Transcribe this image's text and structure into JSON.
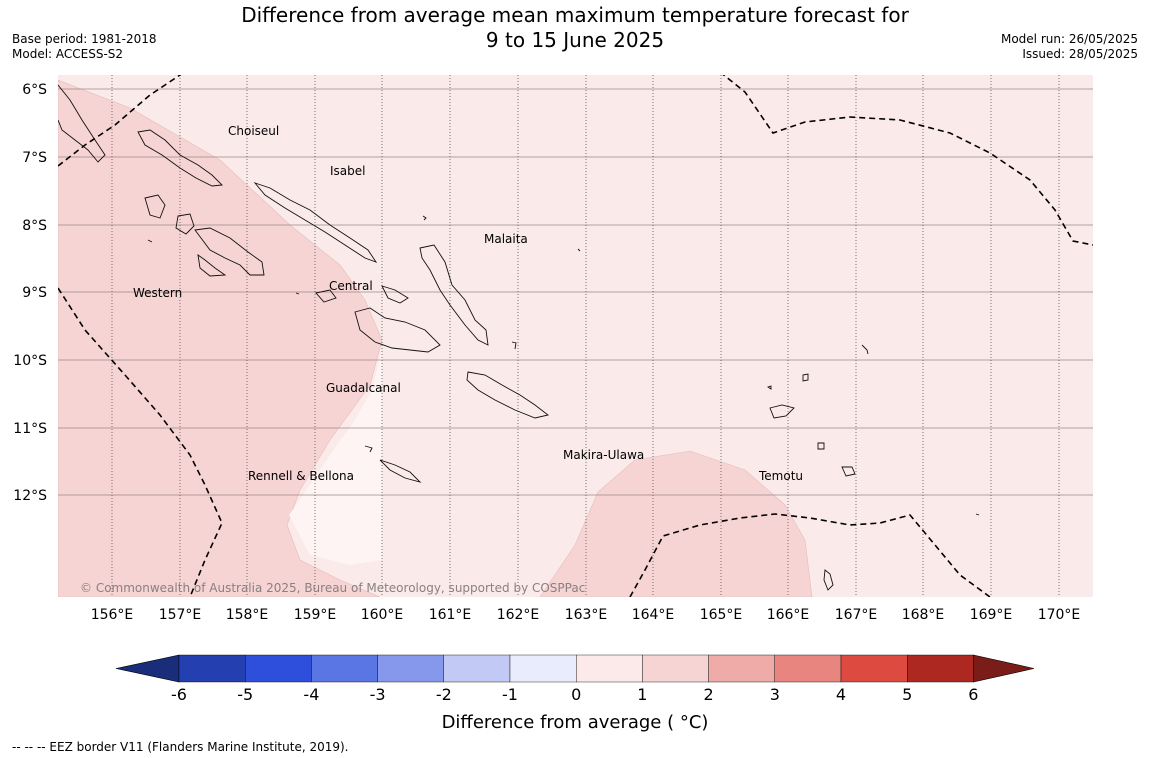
{
  "title_line1": "Difference from average mean maximum temperature forecast for",
  "title_line2": "9 to 15 June 2025",
  "base_period": "Base period: 1981-2018",
  "model": "Model: ACCESS-S2",
  "model_run": "Model run: 26/05/2025",
  "issued": "Issued: 28/05/2025",
  "lat_labels": [
    "6°S",
    "7°S",
    "8°S",
    "9°S",
    "10°S",
    "11°S",
    "12°S"
  ],
  "lon_labels": [
    "156°E",
    "157°E",
    "158°E",
    "159°E",
    "160°E",
    "161°E",
    "162°E",
    "163°E",
    "164°E",
    "165°E",
    "166°E",
    "167°E",
    "168°E",
    "169°E",
    "170°E"
  ],
  "provinces": [
    "Choiseul",
    "Isabel",
    "Malaita",
    "Western",
    "Central",
    "Guadalcanal",
    "Makira-Ulawa",
    "Temotu",
    "Rennell & Bellona"
  ],
  "copyright": "© Commonwealth of Australia 2025, Bureau of Meteorology, supported by COSPPac",
  "colorbar": {
    "title": "Difference from average ( °C)",
    "ticks": [
      "-6",
      "-5",
      "-4",
      "-3",
      "-2",
      "-1",
      "0",
      "1",
      "2",
      "3",
      "4",
      "5",
      "6"
    ],
    "colors": [
      "#243faf",
      "#2e4fdc",
      "#5a75e4",
      "#8598ec",
      "#c2c9f4",
      "#e8ecfc",
      "#fceaea",
      "#f6d4d3",
      "#eeaba8",
      "#e8857e",
      "#dd4a3f",
      "#ad2821"
    ],
    "under_color": "#1a2d7a",
    "over_color": "#7a1d18"
  },
  "footnote": "--  --  -- EEZ border V11 (Flanders Marine Institute, 2019)."
}
